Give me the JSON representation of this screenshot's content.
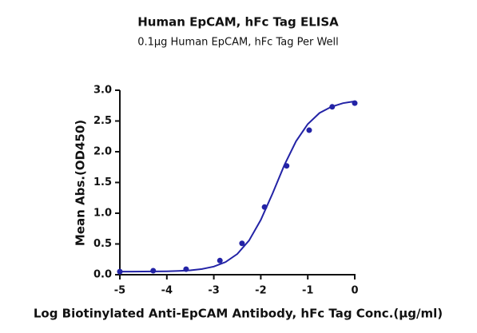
{
  "chart_data": {
    "type": "scatter",
    "title": "Human EpCAM, hFc Tag ELISA",
    "subtitle": "0.1μg Human EpCAM, hFc Tag Per Well",
    "x_label": "Log Biotinylated Anti-EpCAM Antibody, hFc Tag Conc.(μg/ml)",
    "y_label": "Mean Abs.(OD450)",
    "color": "#2323a6",
    "x": [
      -5,
      -4.29,
      -3.59,
      -2.87,
      -2.4,
      -1.92,
      -1.45,
      -0.97,
      -0.48,
      0
    ],
    "values": [
      0.05,
      0.065,
      0.09,
      0.23,
      0.51,
      1.1,
      1.77,
      2.35,
      2.73,
      2.79
    ],
    "fit": {
      "x": [
        -5,
        -4.75,
        -4.5,
        -4.25,
        -4,
        -3.75,
        -3.5,
        -3.25,
        -3,
        -2.75,
        -2.5,
        -2.25,
        -2,
        -1.75,
        -1.5,
        -1.25,
        -1,
        -0.75,
        -0.5,
        -0.25,
        0
      ],
      "values": [
        0.05,
        0.051,
        0.052,
        0.053,
        0.056,
        0.062,
        0.072,
        0.093,
        0.132,
        0.206,
        0.337,
        0.556,
        0.891,
        1.32,
        1.78,
        2.17,
        2.45,
        2.63,
        2.73,
        2.79,
        2.82
      ]
    },
    "xlim": [
      -5,
      0
    ],
    "ylim": [
      0,
      3
    ],
    "xticks": [
      -5,
      -4,
      -3,
      -2,
      -1,
      0
    ],
    "yticks": [
      {
        "value": 0,
        "label": "0.0"
      },
      0.5,
      {
        "value": 1,
        "label": "1.0"
      },
      1.5,
      {
        "value": 2,
        "label": "2.0"
      },
      2.5,
      {
        "value": 3,
        "label": "3.0"
      }
    ]
  }
}
